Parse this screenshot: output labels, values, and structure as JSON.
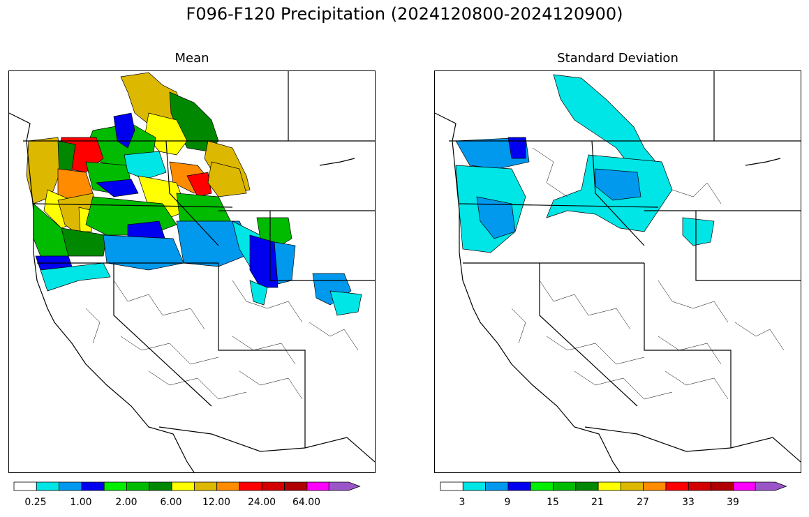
{
  "figure": {
    "title": "F096-F120 Precipitation (2024120800-2024120900)"
  },
  "panels": [
    {
      "title": "Mean",
      "colorbar_labels": [
        "0.25",
        "1.00",
        "2.00",
        "6.00",
        "12.00",
        "24.00",
        "64.00"
      ]
    },
    {
      "title": "Standard Deviation",
      "colorbar_labels": [
        "3",
        "9",
        "15",
        "21",
        "27",
        "33",
        "39"
      ]
    }
  ],
  "colors": {
    "colorbar": [
      "#ffffff",
      "#00e5e5",
      "#0099ee",
      "#0000f0",
      "#00ee00",
      "#00bb00",
      "#008800",
      "#ffff00",
      "#ddb800",
      "#ff8c00",
      "#ff0000",
      "#d40000",
      "#b00000",
      "#ff00ff",
      "#9a55c8"
    ],
    "map_regions": {
      "white": "#ffffff",
      "cyan": "#00e5e5",
      "light_blue": "#0099ee",
      "blue": "#0000f0",
      "green": "#00bb00",
      "dark_green": "#008800",
      "yellow": "#ffff00",
      "gold": "#ddb800",
      "orange": "#ff8c00",
      "red": "#ff0000"
    }
  }
}
